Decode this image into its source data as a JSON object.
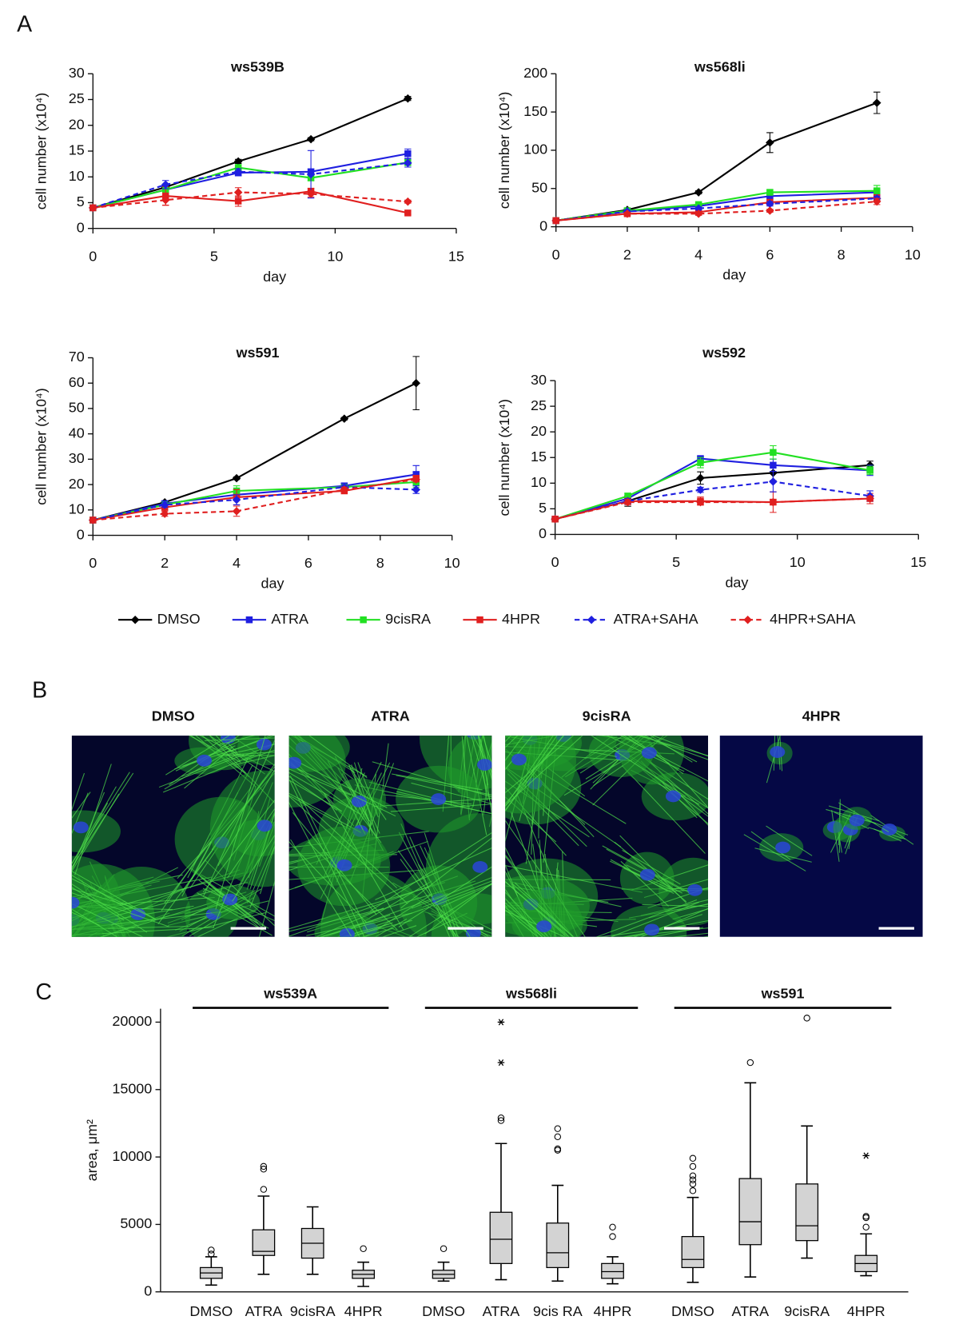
{
  "panel_labels": [
    "A",
    "B",
    "C"
  ],
  "images": {
    "titles": [
      "DMSO",
      "ATRA",
      "9cisRA",
      "4HPR"
    ]
  },
  "chart_data": [
    {
      "type": "line",
      "title": "ws539B",
      "xlabel": "day",
      "ylabel": "cell number (x10⁴)",
      "x": [
        0,
        3,
        6,
        9,
        13
      ],
      "xlim": [
        0,
        15
      ],
      "xticks": [
        0,
        5,
        10,
        15
      ],
      "ylim": [
        0,
        30
      ],
      "yticks": [
        0,
        5,
        10,
        15,
        20,
        25,
        30
      ],
      "grid": false,
      "legend": "bottom",
      "series": [
        {
          "name": "DMSO",
          "color": "#000000",
          "dashed": false,
          "marker": "diamond",
          "values": [
            4,
            8,
            13,
            17.3,
            25.2
          ],
          "errors": [
            0.3,
            0.3,
            0.4,
            0.3,
            0.4
          ]
        },
        {
          "name": "ATRA",
          "color": "#1f1fe0",
          "dashed": false,
          "marker": "square",
          "values": [
            4,
            7.5,
            10.8,
            11,
            14.5
          ],
          "errors": [
            0.3,
            0.5,
            0.6,
            0.5,
            0.9
          ]
        },
        {
          "name": "9cisRA",
          "color": "#22e022",
          "dashed": false,
          "marker": "square",
          "values": [
            4,
            7.5,
            11.8,
            9.8,
            12.8
          ],
          "errors": [
            0.3,
            0.5,
            0.6,
            0.5,
            0.6
          ]
        },
        {
          "name": "4HPR",
          "color": "#e01f1f",
          "dashed": false,
          "marker": "square",
          "values": [
            4,
            6.3,
            5.3,
            7.2,
            3
          ],
          "errors": [
            0.3,
            1.8,
            1,
            0.6,
            0.3
          ]
        },
        {
          "name": "ATRA+SAHA",
          "color": "#1f1fe0",
          "dashed": true,
          "marker": "diamond",
          "values": [
            4,
            8.5,
            11,
            10.5,
            12.7
          ],
          "errors": [
            0.3,
            0.8,
            0.6,
            4.6,
            0.8
          ]
        },
        {
          "name": "4HPR+SAHA",
          "color": "#e01f1f",
          "dashed": true,
          "marker": "diamond",
          "values": [
            4,
            5.5,
            7,
            6.7,
            5.2
          ],
          "errors": [
            0.3,
            1,
            0.9,
            0.6,
            0.3
          ]
        }
      ]
    },
    {
      "type": "line",
      "title": "ws568li",
      "xlabel": "day",
      "ylabel": "cell number (x10⁴)",
      "x": [
        0,
        2,
        4,
        6,
        9
      ],
      "xlim": [
        0,
        10
      ],
      "xticks": [
        0,
        2,
        4,
        6,
        8,
        10
      ],
      "ylim": [
        0,
        200
      ],
      "yticks": [
        0,
        50,
        100,
        150,
        200
      ],
      "grid": false,
      "series": [
        {
          "color": "#000000",
          "dashed": false,
          "marker": "diamond",
          "values": [
            8,
            22,
            45,
            110,
            162
          ],
          "errors": [
            1,
            2,
            2,
            13,
            14
          ]
        },
        {
          "color": "#1f1fe0",
          "dashed": false,
          "marker": "square",
          "values": [
            8,
            20,
            27,
            40,
            45
          ],
          "errors": [
            1,
            2,
            2,
            3,
            4
          ]
        },
        {
          "color": "#22e022",
          "dashed": false,
          "marker": "square",
          "values": [
            8,
            21,
            29,
            45,
            47
          ],
          "errors": [
            1,
            2,
            3,
            3,
            7
          ]
        },
        {
          "color": "#e01f1f",
          "dashed": false,
          "marker": "square",
          "values": [
            8,
            17,
            19,
            32,
            38
          ],
          "errors": [
            1,
            2,
            2,
            3,
            3
          ]
        },
        {
          "color": "#1f1fe0",
          "dashed": true,
          "marker": "diamond",
          "values": [
            8,
            20,
            24,
            30,
            37
          ],
          "errors": [
            1,
            2,
            2,
            3,
            3
          ]
        },
        {
          "color": "#e01f1f",
          "dashed": true,
          "marker": "diamond",
          "values": [
            8,
            17,
            17,
            21,
            33
          ],
          "errors": [
            1,
            2,
            2,
            2,
            4
          ]
        }
      ]
    },
    {
      "type": "line",
      "title": "ws591",
      "xlabel": "day",
      "ylabel": "cell number (x10⁴)",
      "x": [
        0,
        2,
        4,
        7,
        9
      ],
      "xlim": [
        0,
        10
      ],
      "xticks": [
        0,
        2,
        4,
        6,
        8,
        10
      ],
      "ylim": [
        0,
        70
      ],
      "yticks": [
        0,
        10,
        20,
        30,
        40,
        50,
        60,
        70
      ],
      "grid": false,
      "series": [
        {
          "color": "#000000",
          "dashed": false,
          "marker": "diamond",
          "values": [
            6,
            13,
            22.5,
            46,
            60
          ],
          "errors": [
            0.3,
            0.5,
            0.5,
            0.5,
            10.5
          ]
        },
        {
          "color": "#1f1fe0",
          "dashed": false,
          "marker": "square",
          "values": [
            6,
            12.5,
            16,
            19.5,
            24
          ],
          "errors": [
            0.3,
            0.5,
            1,
            1,
            3.5
          ]
        },
        {
          "color": "#22e022",
          "dashed": false,
          "marker": "square",
          "values": [
            6,
            12,
            17.5,
            19,
            21
          ],
          "errors": [
            0.3,
            0.5,
            2,
            1,
            2
          ]
        },
        {
          "color": "#e01f1f",
          "dashed": false,
          "marker": "square",
          "values": [
            6,
            11,
            15,
            17.5,
            22.5
          ],
          "errors": [
            0.3,
            1,
            3,
            1,
            1
          ]
        },
        {
          "color": "#1f1fe0",
          "dashed": true,
          "marker": "diamond",
          "values": [
            6,
            12,
            14,
            19,
            18
          ],
          "errors": [
            0.3,
            1,
            2,
            1,
            1.5
          ]
        },
        {
          "color": "#e01f1f",
          "dashed": true,
          "marker": "diamond",
          "values": [
            6,
            8.5,
            9.5,
            18,
            22
          ],
          "errors": [
            0.3,
            1,
            2,
            1,
            1
          ]
        }
      ]
    },
    {
      "type": "line",
      "title": "ws592",
      "xlabel": "day",
      "ylabel": "cell number (x10⁴)",
      "x": [
        0,
        3,
        6,
        9,
        13
      ],
      "xlim": [
        0,
        15
      ],
      "xticks": [
        0,
        5,
        10,
        15
      ],
      "ylim": [
        0,
        30
      ],
      "yticks": [
        0,
        5,
        10,
        15,
        20,
        25,
        30
      ],
      "grid": false,
      "series": [
        {
          "color": "#000000",
          "dashed": false,
          "marker": "diamond",
          "values": [
            3,
            6.5,
            11,
            12,
            13.5
          ],
          "errors": [
            0.2,
            1,
            1.2,
            1.5,
            0.8
          ]
        },
        {
          "color": "#1f1fe0",
          "dashed": false,
          "marker": "square",
          "values": [
            3,
            7,
            14.8,
            13.5,
            12.5
          ],
          "errors": [
            0.2,
            0.5,
            0.4,
            1.2,
            1
          ]
        },
        {
          "color": "#22e022",
          "dashed": false,
          "marker": "square",
          "values": [
            3,
            7.5,
            14,
            16,
            12.5
          ],
          "errors": [
            0.2,
            0.5,
            1,
            1.3,
            0.8
          ]
        },
        {
          "color": "#e01f1f",
          "dashed": false,
          "marker": "square",
          "values": [
            3,
            6.5,
            6.5,
            6.3,
            7
          ],
          "errors": [
            0.2,
            0.5,
            0.8,
            2,
            1
          ]
        },
        {
          "color": "#1f1fe0",
          "dashed": true,
          "marker": "diamond",
          "values": [
            3,
            6.5,
            8.7,
            10.3,
            7.5
          ],
          "errors": [
            0.2,
            0.5,
            0.5,
            2,
            1
          ]
        },
        {
          "color": "#e01f1f",
          "dashed": true,
          "marker": "diamond",
          "values": [
            3,
            6.3,
            6.3,
            6.3,
            7
          ],
          "errors": [
            0.2,
            0.5,
            0.5,
            0.5,
            0.5
          ]
        }
      ]
    },
    {
      "type": "box",
      "ylabel": "area, μm²",
      "color": "#d3d3d3",
      "ylim": [
        0,
        21000
      ],
      "yticks": [
        0,
        5000,
        10000,
        15000,
        20000
      ],
      "grid": false,
      "groups": [
        {
          "title": "ws539A",
          "boxes": [
            {
              "category": "DMSO",
              "min": 500,
              "q1": 1000,
              "median": 1400,
              "q3": 1800,
              "max": 2600,
              "outliers": [
                2800,
                3100
              ]
            },
            {
              "category": "ATRA",
              "min": 1300,
              "q1": 2700,
              "median": 3000,
              "q3": 4600,
              "max": 7100,
              "outliers": [
                7600,
                9100,
                9300
              ]
            },
            {
              "category": "9cisRA",
              "min": 1300,
              "q1": 2500,
              "median": 3600,
              "q3": 4700,
              "max": 6300
            },
            {
              "category": "4HPR",
              "min": 400,
              "q1": 1000,
              "median": 1300,
              "q3": 1600,
              "max": 2200,
              "outliers": [
                3200
              ]
            }
          ]
        },
        {
          "title": "ws568li",
          "boxes": [
            {
              "category": "DMSO",
              "min": 800,
              "q1": 1000,
              "median": 1300,
              "q3": 1600,
              "max": 2200,
              "outliers": [
                3200
              ]
            },
            {
              "category": "ATRA",
              "min": 900,
              "q1": 2100,
              "median": 3900,
              "q3": 5900,
              "max": 11000,
              "outliers": [
                12700,
                12900
              ],
              "extremes": [
                17000,
                20000
              ]
            },
            {
              "category": "9cis RA",
              "min": 800,
              "q1": 1800,
              "median": 2900,
              "q3": 5100,
              "max": 7900,
              "outliers": [
                10500,
                10600,
                11500,
                12100
              ]
            },
            {
              "category": "4HPR",
              "min": 600,
              "q1": 1000,
              "median": 1500,
              "q3": 2100,
              "max": 2600,
              "outliers": [
                4100,
                4800
              ]
            }
          ]
        },
        {
          "title": "ws591",
          "boxes": [
            {
              "category": "DMSO",
              "min": 700,
              "q1": 1800,
              "median": 2400,
              "q3": 4100,
              "max": 7000,
              "outliers": [
                7500,
                8000,
                8300,
                8600,
                9300,
                9900
              ]
            },
            {
              "category": "ATRA",
              "min": 1100,
              "q1": 3500,
              "median": 5200,
              "q3": 8400,
              "max": 15500,
              "outliers": [
                17000
              ]
            },
            {
              "category": "9cisRA",
              "min": 2500,
              "q1": 3800,
              "median": 4900,
              "q3": 8000,
              "max": 12300,
              "outliers": [
                20300
              ]
            },
            {
              "category": "4HPR",
              "min": 1200,
              "q1": 1500,
              "median": 2100,
              "q3": 2700,
              "max": 4300,
              "outliers": [
                4800,
                5500,
                5600
              ],
              "extremes": [
                10100
              ]
            }
          ]
        }
      ]
    }
  ]
}
